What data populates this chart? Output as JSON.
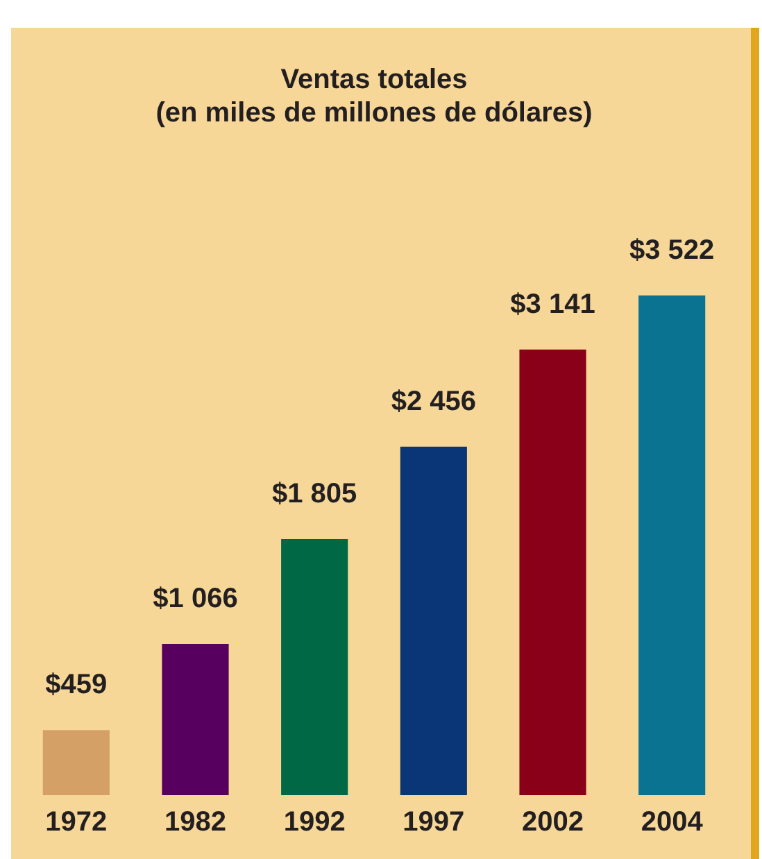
{
  "chart_data": {
    "type": "bar",
    "title": "Ventas totales\n(en miles de millones de dólares)",
    "categories": [
      "1972",
      "1982",
      "1992",
      "1997",
      "2002",
      "2004"
    ],
    "values": [
      459,
      1066,
      1805,
      2456,
      3141,
      3522
    ],
    "colors": [
      "#d4a066",
      "#58005f",
      "#006845",
      "#0a3677",
      "#8a0018",
      "#0a7392"
    ],
    "value_labels": [
      "$459",
      "$1 066",
      "$1 805",
      "$2 456",
      "$3 141",
      "$3 522"
    ],
    "legend": false
  }
}
